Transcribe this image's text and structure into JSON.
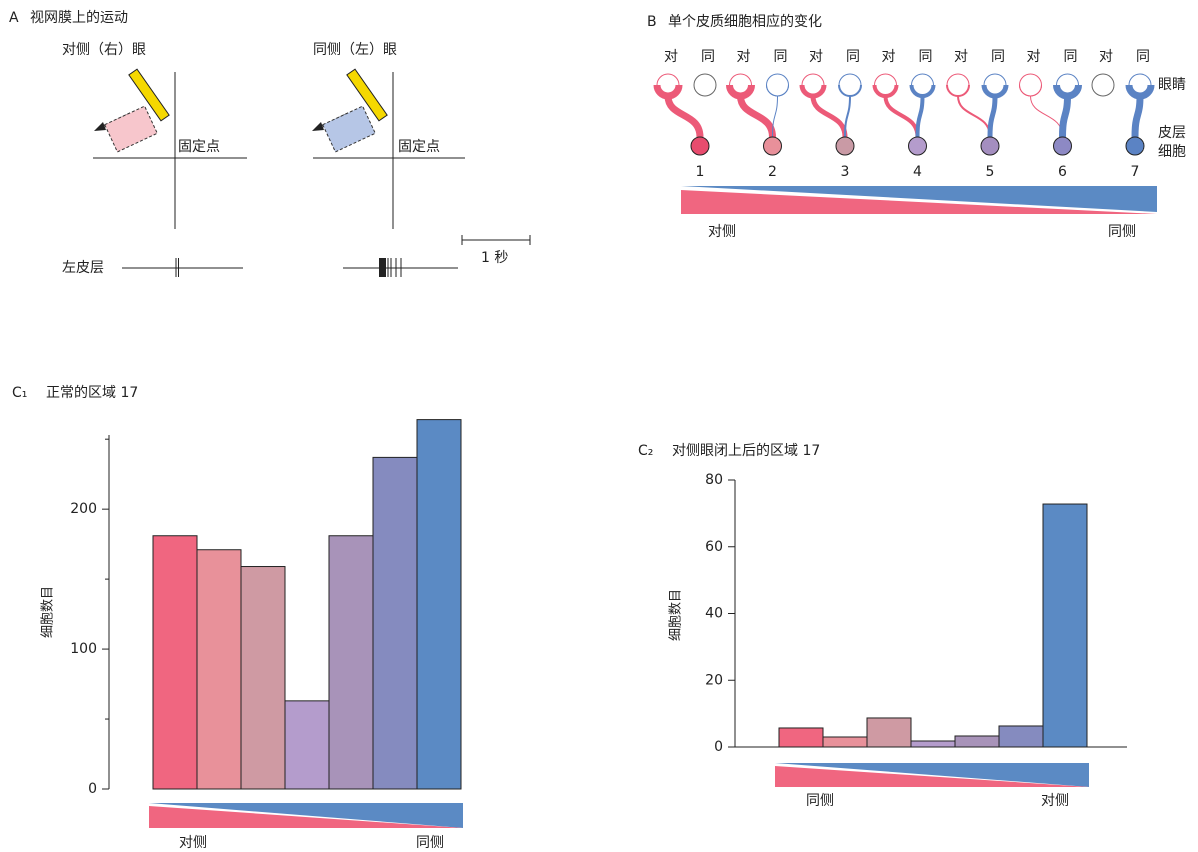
{
  "panel_a": {
    "label": "A",
    "title": "视网膜上的运动",
    "contra_eye": "对侧（右）眼",
    "ipsi_eye": "同侧（左）眼",
    "fixation": "固定点",
    "cortex": "左皮层",
    "scale": "1 秒"
  },
  "panel_b": {
    "label": "B",
    "title": "单个皮质细胞相应的变化",
    "contra": "对",
    "ipsi": "同",
    "eyes": "眼睛",
    "cortex_cell": [
      "皮层",
      "细胞"
    ],
    "groups": [
      1,
      2,
      3,
      4,
      5,
      6,
      7
    ],
    "cell_colors": [
      "#e84c6e",
      "#e8909a",
      "#c99aa5",
      "#b49ccc",
      "#a48ebf",
      "#8d89c4",
      "#5b83c4"
    ],
    "left_end": "对侧",
    "right_end": "同侧"
  },
  "chart_data": [
    {
      "type": "bar",
      "label": "C₁",
      "title": "正常的区域 17",
      "ylabel": "细胞数目",
      "values": [
        181,
        171,
        159,
        63,
        181,
        237,
        264
      ],
      "colors": [
        "#f06680",
        "#e8919a",
        "#cf9aa3",
        "#b49ccc",
        "#a893b9",
        "#858bbf",
        "#5b8ac4"
      ],
      "ylim": [
        0,
        253
      ],
      "yticks": [
        0,
        100,
        200
      ],
      "minor_yticks": [
        50,
        150,
        250
      ],
      "baseline": false,
      "gradient_labels": [
        "对侧",
        "同侧"
      ]
    },
    {
      "type": "bar",
      "label": "C₂",
      "title": "对侧眼闭上后的区域 17",
      "ylabel": "细胞数目",
      "values": [
        5.7,
        3,
        8.7,
        1.8,
        3.3,
        6.3,
        72.8
      ],
      "colors": [
        "#f06680",
        "#e8919a",
        "#cf9aa3",
        "#b49ccc",
        "#a893b9",
        "#858bbf",
        "#5b8ac4"
      ],
      "ylim": [
        0,
        80
      ],
      "yticks": [
        0,
        20,
        40,
        60,
        80
      ],
      "minor_yticks": [],
      "baseline": true,
      "gradient_labels": [
        "同侧",
        "对侧"
      ]
    }
  ]
}
